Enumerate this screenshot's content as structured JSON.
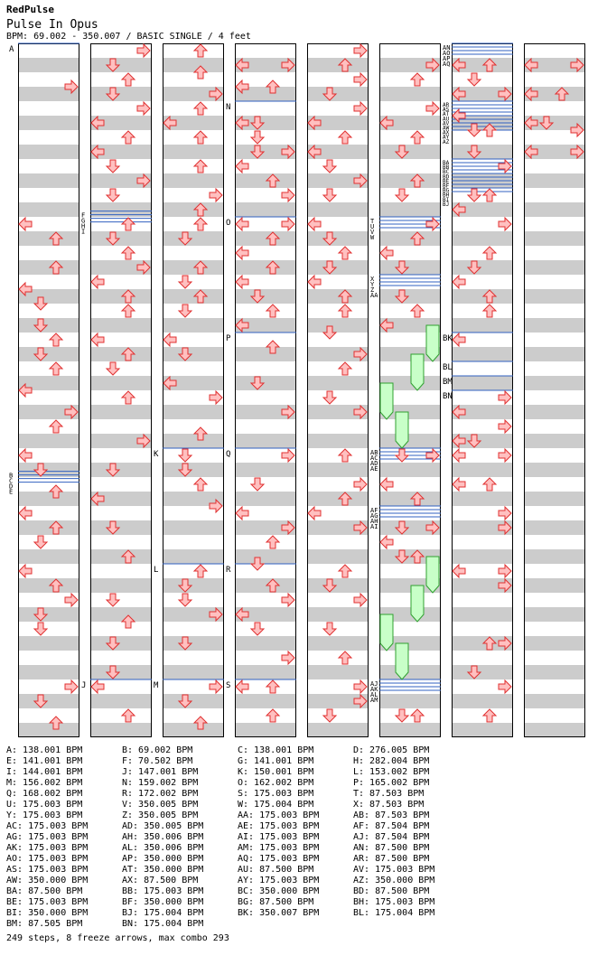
{
  "header": {
    "artist": "RedPulse",
    "song": "Pulse In Opus",
    "info": "BPM: 69.002 - 350.007 / BASIC SINGLE / 4 feet"
  },
  "colors": {
    "stripe": "#cccccc",
    "column_border": "#000000",
    "arrow_fill": "#ffc0c0",
    "arrow_stroke": "#e03030",
    "freeze_fill": "#c8ffc8",
    "freeze_stroke": "#30a030",
    "bpm_line": "#3060c0"
  },
  "markers": [
    {
      "col": 0,
      "beat": 0,
      "labels": [
        "A"
      ]
    },
    {
      "col": 0,
      "beat": 29.6,
      "labels": [
        "B",
        "C",
        "D",
        "E"
      ]
    },
    {
      "col": 1,
      "beat": 11.6,
      "labels": [
        "F",
        "G",
        "H",
        "I"
      ]
    },
    {
      "col": 1,
      "beat": 44,
      "labels": [
        "J"
      ]
    },
    {
      "col": 2,
      "beat": 28,
      "labels": [
        "K"
      ]
    },
    {
      "col": 2,
      "beat": 36,
      "labels": [
        "L"
      ]
    },
    {
      "col": 2,
      "beat": 44,
      "labels": [
        "M"
      ]
    },
    {
      "col": 3,
      "beat": 4,
      "labels": [
        "N"
      ]
    },
    {
      "col": 3,
      "beat": 12,
      "labels": [
        "O"
      ]
    },
    {
      "col": 3,
      "beat": 20,
      "labels": [
        "P"
      ]
    },
    {
      "col": 3,
      "beat": 28,
      "labels": [
        "Q"
      ]
    },
    {
      "col": 3,
      "beat": 36,
      "labels": [
        "R"
      ]
    },
    {
      "col": 3,
      "beat": 44,
      "labels": [
        "S"
      ]
    },
    {
      "col": 5,
      "beat": 12,
      "labels": [
        "T",
        "U",
        "V",
        "W"
      ]
    },
    {
      "col": 5,
      "beat": 16,
      "labels": [
        "X",
        "Y",
        "Z",
        "AA"
      ]
    },
    {
      "col": 5,
      "beat": 28,
      "labels": [
        "AB",
        "AC",
        "AD",
        "AE"
      ]
    },
    {
      "col": 5,
      "beat": 32,
      "labels": [
        "AF",
        "AG",
        "AH",
        "AI"
      ]
    },
    {
      "col": 5,
      "beat": 44,
      "labels": [
        "AJ",
        "AK",
        "AL",
        "AM"
      ]
    },
    {
      "col": 6,
      "beat": 0,
      "labels": [
        "AN",
        "AO",
        "AP",
        "AQ"
      ]
    },
    {
      "col": 6,
      "beat": 4,
      "labels": [
        "AR",
        "AS",
        "AT",
        "AU",
        "AV",
        "AW",
        "AX",
        "AY",
        "AZ"
      ]
    },
    {
      "col": 6,
      "beat": 8,
      "labels": [
        "BA",
        "BB",
        "BC",
        "BD",
        "BE",
        "BF",
        "BG",
        "BH",
        "BI",
        "BJ"
      ]
    },
    {
      "col": 6,
      "beat": 20,
      "labels": [
        "BK"
      ]
    },
    {
      "col": 6,
      "beat": 22,
      "labels": [
        "BL"
      ]
    },
    {
      "col": 6,
      "beat": 23,
      "labels": [
        "BM"
      ]
    },
    {
      "col": 6,
      "beat": 24,
      "labels": [
        "BN"
      ]
    }
  ],
  "freezes": [
    {
      "col": 5,
      "lane": 3,
      "start": 19.5,
      "end": 22
    },
    {
      "col": 5,
      "lane": 2,
      "start": 21.5,
      "end": 24
    },
    {
      "col": 5,
      "lane": 0,
      "start": 23.5,
      "end": 26
    },
    {
      "col": 5,
      "lane": 1,
      "start": 25.5,
      "end": 28
    },
    {
      "col": 5,
      "lane": 3,
      "start": 35.5,
      "end": 38
    },
    {
      "col": 5,
      "lane": 2,
      "start": 37.5,
      "end": 40
    },
    {
      "col": 5,
      "lane": 0,
      "start": 39.5,
      "end": 42
    },
    {
      "col": 5,
      "lane": 1,
      "start": 41.5,
      "end": 44
    }
  ],
  "notes": [
    [
      0,
      0,
      "R",
      3
    ],
    [
      0,
      0,
      "L",
      12.5
    ],
    [
      0,
      0,
      "U",
      13.5
    ],
    [
      0,
      0,
      "U",
      15.5
    ],
    [
      0,
      0,
      "L",
      17
    ],
    [
      0,
      0,
      "D",
      18
    ],
    [
      0,
      0,
      "D",
      19.5
    ],
    [
      0,
      0,
      "U",
      20.5
    ],
    [
      0,
      0,
      "D",
      21.5
    ],
    [
      0,
      0,
      "U",
      22.5
    ],
    [
      0,
      0,
      "L",
      24
    ],
    [
      0,
      0,
      "R",
      25.5
    ],
    [
      0,
      0,
      "U",
      26.5
    ],
    [
      0,
      0,
      "L",
      28.5
    ],
    [
      0,
      0,
      "D",
      29.5
    ],
    [
      0,
      0,
      "U",
      31
    ],
    [
      0,
      0,
      "L",
      32.5
    ],
    [
      0,
      0,
      "U",
      33.5
    ],
    [
      0,
      0,
      "D",
      34.5
    ],
    [
      0,
      0,
      "L",
      36.5
    ],
    [
      0,
      0,
      "U",
      37.5
    ],
    [
      0,
      0,
      "R",
      38.5
    ],
    [
      0,
      0,
      "D",
      39.5
    ],
    [
      0,
      0,
      "D",
      40.5
    ],
    [
      0,
      0,
      "R",
      44.5
    ],
    [
      0,
      0,
      "D",
      45.5
    ],
    [
      0,
      0,
      "U",
      47
    ],
    [
      1,
      0,
      "R",
      0.5
    ],
    [
      1,
      0,
      "D",
      1.5
    ],
    [
      1,
      0,
      "U",
      2.5
    ],
    [
      1,
      0,
      "D",
      3.5
    ],
    [
      1,
      0,
      "R",
      4.5
    ],
    [
      1,
      0,
      "L",
      5.5
    ],
    [
      1,
      0,
      "U",
      6.5
    ],
    [
      1,
      0,
      "L",
      7.5
    ],
    [
      1,
      0,
      "D",
      8.5
    ],
    [
      1,
      0,
      "R",
      9.5
    ],
    [
      1,
      0,
      "D",
      10.5
    ],
    [
      1,
      0,
      "U",
      12.5
    ],
    [
      1,
      0,
      "D",
      13.5
    ],
    [
      1,
      0,
      "U",
      14.5
    ],
    [
      1,
      0,
      "R",
      15.5
    ],
    [
      1,
      0,
      "L",
      16.5
    ],
    [
      1,
      0,
      "U",
      17.5
    ],
    [
      1,
      0,
      "U",
      18.5
    ],
    [
      1,
      0,
      "L",
      20.5
    ],
    [
      1,
      0,
      "U",
      21.5
    ],
    [
      1,
      0,
      "D",
      22.5
    ],
    [
      1,
      0,
      "U",
      24.5
    ],
    [
      1,
      0,
      "R",
      27.5
    ],
    [
      1,
      0,
      "D",
      29.5
    ],
    [
      1,
      0,
      "L",
      31.5
    ],
    [
      1,
      0,
      "D",
      33.5
    ],
    [
      1,
      0,
      "U",
      35.5
    ],
    [
      1,
      0,
      "D",
      38.5
    ],
    [
      1,
      0,
      "U",
      40
    ],
    [
      1,
      0,
      "D",
      41.5
    ],
    [
      1,
      0,
      "D",
      43.5
    ],
    [
      1,
      0,
      "L",
      44.5
    ],
    [
      1,
      0,
      "U",
      46.5
    ],
    [
      2,
      0,
      "U",
      0.5
    ],
    [
      2,
      0,
      "U",
      2
    ],
    [
      2,
      0,
      "R",
      3.5
    ],
    [
      2,
      0,
      "U",
      4.5
    ],
    [
      2,
      0,
      "L",
      5.5
    ],
    [
      2,
      0,
      "U",
      6.5
    ],
    [
      2,
      0,
      "U",
      8.5
    ],
    [
      2,
      0,
      "R",
      10.5
    ],
    [
      2,
      0,
      "U",
      11.5
    ],
    [
      2,
      0,
      "U",
      12.5
    ],
    [
      2,
      0,
      "D",
      13.5
    ],
    [
      2,
      0,
      "U",
      15.5
    ],
    [
      2,
      0,
      "D",
      16.5
    ],
    [
      2,
      0,
      "U",
      17.5
    ],
    [
      2,
      0,
      "D",
      18.5
    ],
    [
      2,
      0,
      "L",
      20.5
    ],
    [
      2,
      0,
      "D",
      21.5
    ],
    [
      2,
      0,
      "L",
      23.5
    ],
    [
      2,
      0,
      "R",
      24.5
    ],
    [
      2,
      0,
      "U",
      27
    ],
    [
      2,
      0,
      "D",
      28.5
    ],
    [
      2,
      0,
      "D",
      29.5
    ],
    [
      2,
      0,
      "U",
      30.5
    ],
    [
      2,
      0,
      "R",
      32
    ],
    [
      2,
      0,
      "U",
      36.5
    ],
    [
      2,
      0,
      "D",
      37.5
    ],
    [
      2,
      0,
      "D",
      38.5
    ],
    [
      2,
      0,
      "R",
      39.5
    ],
    [
      2,
      0,
      "D",
      41.5
    ],
    [
      2,
      0,
      "R",
      44.5
    ],
    [
      2,
      0,
      "D",
      45.5
    ],
    [
      2,
      0,
      "U",
      47
    ],
    [
      3,
      0,
      "L",
      1.5
    ],
    [
      3,
      0,
      "R",
      1.5
    ],
    [
      3,
      0,
      "L",
      3
    ],
    [
      3,
      0,
      "U",
      3
    ],
    [
      3,
      0,
      "L",
      5.5
    ],
    [
      3,
      0,
      "D",
      5.5
    ],
    [
      3,
      0,
      "D",
      6.5
    ],
    [
      3,
      0,
      "D",
      7.5
    ],
    [
      3,
      0,
      "R",
      7.5
    ],
    [
      3,
      0,
      "L",
      8.5
    ],
    [
      3,
      0,
      "U",
      9.5
    ],
    [
      3,
      0,
      "R",
      10.5
    ],
    [
      3,
      0,
      "L",
      12.5
    ],
    [
      3,
      0,
      "R",
      12.5
    ],
    [
      3,
      0,
      "U",
      13.5
    ],
    [
      3,
      0,
      "L",
      14.5
    ],
    [
      3,
      0,
      "U",
      15.5
    ],
    [
      3,
      0,
      "L",
      16.5
    ],
    [
      3,
      0,
      "D",
      17.5
    ],
    [
      3,
      0,
      "U",
      18.5
    ],
    [
      3,
      0,
      "L",
      19.5
    ],
    [
      3,
      0,
      "U",
      21
    ],
    [
      3,
      0,
      "D",
      23.5
    ],
    [
      3,
      0,
      "R",
      25.5
    ],
    [
      3,
      0,
      "R",
      28.5
    ],
    [
      3,
      0,
      "D",
      30.5
    ],
    [
      3,
      0,
      "L",
      32.5
    ],
    [
      3,
      0,
      "R",
      33.5
    ],
    [
      3,
      0,
      "U",
      34.5
    ],
    [
      3,
      0,
      "D",
      36
    ],
    [
      3,
      0,
      "U",
      37.5
    ],
    [
      3,
      0,
      "R",
      38.5
    ],
    [
      3,
      0,
      "L",
      39.5
    ],
    [
      3,
      0,
      "D",
      40.5
    ],
    [
      3,
      0,
      "R",
      42.5
    ],
    [
      3,
      0,
      "L",
      44.5
    ],
    [
      3,
      0,
      "U",
      44.5
    ],
    [
      3,
      0,
      "U",
      46.5
    ],
    [
      4,
      0,
      "R",
      0.5
    ],
    [
      4,
      0,
      "U",
      1.5
    ],
    [
      4,
      0,
      "R",
      2.5
    ],
    [
      4,
      0,
      "D",
      3.5
    ],
    [
      4,
      0,
      "R",
      4.5
    ],
    [
      4,
      0,
      "L",
      5.5
    ],
    [
      4,
      0,
      "U",
      6.5
    ],
    [
      4,
      0,
      "L",
      7.5
    ],
    [
      4,
      0,
      "D",
      8.5
    ],
    [
      4,
      0,
      "R",
      9.5
    ],
    [
      4,
      0,
      "D",
      10.5
    ],
    [
      4,
      0,
      "L",
      12.5
    ],
    [
      4,
      0,
      "D",
      13.5
    ],
    [
      4,
      0,
      "U",
      14.5
    ],
    [
      4,
      0,
      "D",
      15.5
    ],
    [
      4,
      0,
      "L",
      16.5
    ],
    [
      4,
      0,
      "U",
      17.5
    ],
    [
      4,
      0,
      "U",
      18.5
    ],
    [
      4,
      0,
      "D",
      20
    ],
    [
      4,
      0,
      "R",
      21.5
    ],
    [
      4,
      0,
      "U",
      22.5
    ],
    [
      4,
      0,
      "D",
      24.5
    ],
    [
      4,
      0,
      "R",
      25.5
    ],
    [
      4,
      0,
      "U",
      28.5
    ],
    [
      4,
      0,
      "R",
      30.5
    ],
    [
      4,
      0,
      "U",
      31.5
    ],
    [
      4,
      0,
      "L",
      32.5
    ],
    [
      4,
      0,
      "R",
      33.5
    ],
    [
      4,
      0,
      "U",
      36.5
    ],
    [
      4,
      0,
      "D",
      37.5
    ],
    [
      4,
      0,
      "R",
      38.5
    ],
    [
      4,
      0,
      "D",
      40.5
    ],
    [
      4,
      0,
      "U",
      42.5
    ],
    [
      4,
      0,
      "R",
      44.5
    ],
    [
      4,
      0,
      "R",
      45.5
    ],
    [
      4,
      0,
      "D",
      46.5
    ],
    [
      5,
      0,
      "R",
      1.5
    ],
    [
      5,
      0,
      "U",
      2.5
    ],
    [
      5,
      0,
      "R",
      4.5
    ],
    [
      5,
      0,
      "L",
      5.5
    ],
    [
      5,
      0,
      "U",
      6.5
    ],
    [
      5,
      0,
      "D",
      7.5
    ],
    [
      5,
      0,
      "U",
      9.5
    ],
    [
      5,
      0,
      "D",
      10.5
    ],
    [
      5,
      0,
      "R",
      12.5
    ],
    [
      5,
      0,
      "U",
      13.5
    ],
    [
      5,
      0,
      "L",
      14.5
    ],
    [
      5,
      0,
      "D",
      15.5
    ],
    [
      5,
      0,
      "D",
      17.5
    ],
    [
      5,
      0,
      "U",
      18.5
    ],
    [
      5,
      0,
      "L",
      19.5
    ],
    [
      5,
      0,
      "D",
      28.5
    ],
    [
      5,
      0,
      "R",
      28.5
    ],
    [
      5,
      0,
      "L",
      30.5
    ],
    [
      5,
      0,
      "U",
      31.5
    ],
    [
      5,
      0,
      "D",
      33.5
    ],
    [
      5,
      0,
      "R",
      33.5
    ],
    [
      5,
      0,
      "L",
      34.5
    ],
    [
      5,
      0,
      "D",
      35.5
    ],
    [
      5,
      0,
      "U",
      35.5
    ],
    [
      5,
      0,
      "D",
      46.5
    ],
    [
      5,
      0,
      "U",
      46.5
    ],
    [
      6,
      0,
      "L",
      1.5
    ],
    [
      6,
      0,
      "U",
      1.5
    ],
    [
      6,
      0,
      "D",
      2.5
    ],
    [
      6,
      0,
      "L",
      3.5
    ],
    [
      6,
      0,
      "R",
      3.5
    ],
    [
      6,
      0,
      "L",
      5
    ],
    [
      6,
      0,
      "D",
      6
    ],
    [
      6,
      0,
      "U",
      6
    ],
    [
      6,
      0,
      "D",
      7.5
    ],
    [
      6,
      0,
      "R",
      8.5
    ],
    [
      6,
      0,
      "D",
      10.5
    ],
    [
      6,
      0,
      "U",
      10.5
    ],
    [
      6,
      0,
      "L",
      11.5
    ],
    [
      6,
      0,
      "R",
      12.5
    ],
    [
      6,
      0,
      "U",
      14.5
    ],
    [
      6,
      0,
      "D",
      15.5
    ],
    [
      6,
      0,
      "L",
      16.5
    ],
    [
      6,
      0,
      "U",
      17.5
    ],
    [
      6,
      0,
      "U",
      18.5
    ],
    [
      6,
      0,
      "L",
      20.5
    ],
    [
      6,
      0,
      "R",
      24.5
    ],
    [
      6,
      0,
      "L",
      25.5
    ],
    [
      6,
      0,
      "R",
      26.5
    ],
    [
      6,
      0,
      "L",
      27.5
    ],
    [
      6,
      0,
      "D",
      27.5
    ],
    [
      6,
      0,
      "L",
      28.5
    ],
    [
      6,
      0,
      "R",
      28.5
    ],
    [
      6,
      0,
      "L",
      30.5
    ],
    [
      6,
      0,
      "U",
      30.5
    ],
    [
      6,
      0,
      "R",
      32.5
    ],
    [
      6,
      0,
      "R",
      33.5
    ],
    [
      6,
      0,
      "L",
      36.5
    ],
    [
      6,
      0,
      "R",
      36.5
    ],
    [
      6,
      0,
      "R",
      37.5
    ],
    [
      6,
      0,
      "U",
      41.5
    ],
    [
      6,
      0,
      "R",
      41.5
    ],
    [
      6,
      0,
      "D",
      43.5
    ],
    [
      6,
      0,
      "R",
      44.5
    ],
    [
      6,
      0,
      "U",
      46.5
    ],
    [
      7,
      0,
      "L",
      1.5
    ],
    [
      7,
      0,
      "R",
      1.5
    ],
    [
      7,
      0,
      "L",
      3.5
    ],
    [
      7,
      0,
      "U",
      3.5
    ],
    [
      7,
      0,
      "L",
      5.5
    ],
    [
      7,
      0,
      "D",
      5.5
    ],
    [
      7,
      0,
      "R",
      6
    ],
    [
      7,
      0,
      "L",
      7.5
    ],
    [
      7,
      0,
      "R",
      7.5
    ]
  ],
  "bpm_legend": [
    [
      "A: 138.001 BPM",
      "B: 69.002 BPM",
      "C: 138.001 BPM",
      "D: 276.005 BPM"
    ],
    [
      "E: 141.001 BPM",
      "F: 70.502 BPM",
      "G: 141.001 BPM",
      "H: 282.004 BPM"
    ],
    [
      "I: 144.001 BPM",
      "J: 147.001 BPM",
      "K: 150.001 BPM",
      "L: 153.002 BPM"
    ],
    [
      "M: 156.002 BPM",
      "N: 159.002 BPM",
      "O: 162.002 BPM",
      "P: 165.002 BPM"
    ],
    [
      "Q: 168.002 BPM",
      "R: 172.002 BPM",
      "S: 175.003 BPM",
      "T: 87.503 BPM"
    ],
    [
      "U: 175.003 BPM",
      "V: 350.005 BPM",
      "W: 175.004 BPM",
      "X: 87.503 BPM"
    ],
    [
      "Y: 175.003 BPM",
      "Z: 350.005 BPM",
      "AA: 175.003 BPM",
      "AB: 87.503 BPM"
    ],
    [
      "AC: 175.003 BPM",
      "AD: 350.005 BPM",
      "AE: 175.003 BPM",
      "AF: 87.504 BPM"
    ],
    [
      "AG: 175.003 BPM",
      "AH: 350.006 BPM",
      "AI: 175.003 BPM",
      "AJ: 87.504 BPM"
    ],
    [
      "AK: 175.003 BPM",
      "AL: 350.006 BPM",
      "AM: 175.003 BPM",
      "AN: 87.500 BPM"
    ],
    [
      "AO: 175.003 BPM",
      "AP: 350.000 BPM",
      "AQ: 175.003 BPM",
      "AR: 87.500 BPM"
    ],
    [
      "AS: 175.003 BPM",
      "AT: 350.000 BPM",
      "AU: 87.500 BPM",
      "AV: 175.003 BPM"
    ],
    [
      "AW: 350.000 BPM",
      "AX: 87.500 BPM",
      "AY: 175.003 BPM",
      "AZ: 350.000 BPM"
    ],
    [
      "BA: 87.500 BPM",
      "BB: 175.003 BPM",
      "BC: 350.000 BPM",
      "BD: 87.500 BPM"
    ],
    [
      "BE: 175.003 BPM",
      "BF: 350.000 BPM",
      "BG: 87.500 BPM",
      "BH: 175.003 BPM"
    ],
    [
      "BI: 350.000 BPM",
      "BJ: 175.004 BPM",
      "BK: 350.007 BPM",
      "BL: 175.004 BPM"
    ],
    [
      "BM: 87.505 BPM",
      "BN: 175.004 BPM",
      "",
      ""
    ]
  ],
  "summary": "249 steps, 8 freeze arrows, max combo 293"
}
